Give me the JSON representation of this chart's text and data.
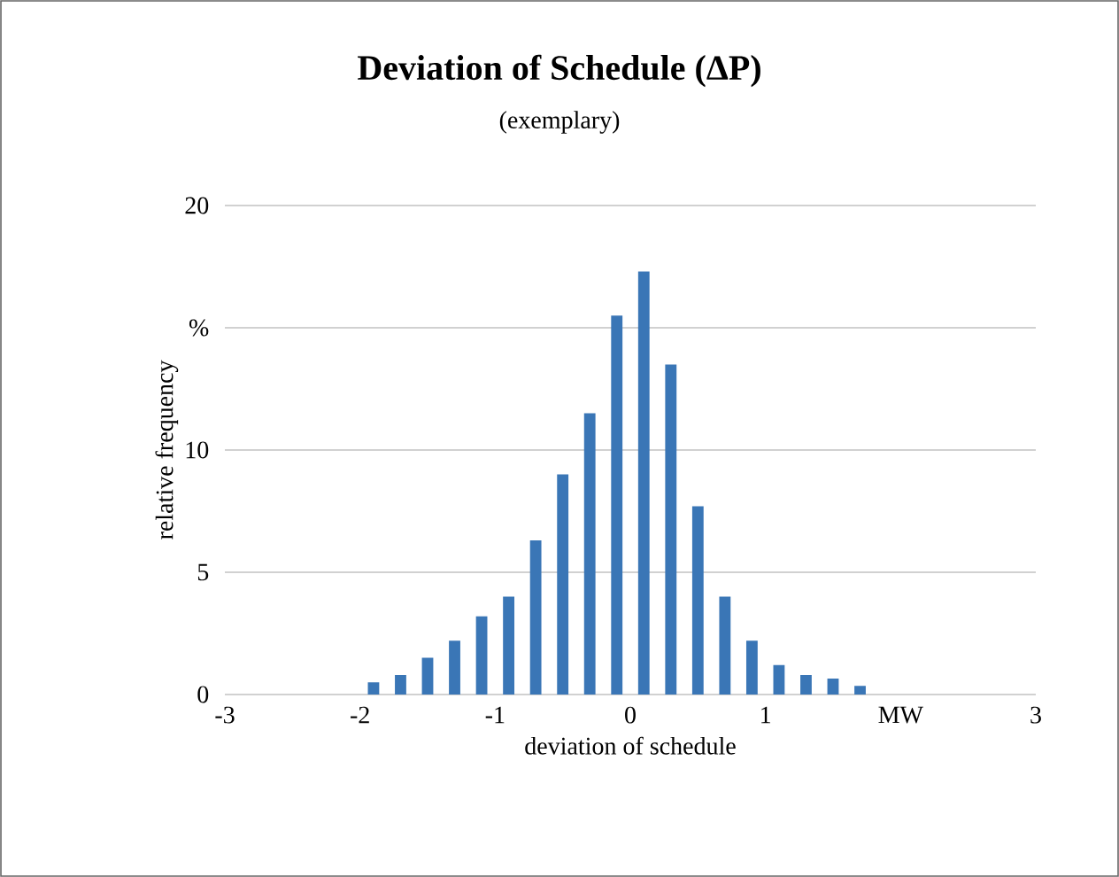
{
  "chart_data": {
    "type": "histogram",
    "title": "Deviation of Schedule (ΔP)",
    "subtitle": "(exemplary)",
    "xlabel": "deviation of schedule",
    "ylabel": "relative frequency",
    "bins": [
      -2.0,
      -1.8,
      -1.6,
      -1.4,
      -1.2,
      -1.0,
      -0.8,
      -0.6,
      -0.4,
      -0.2,
      0.0,
      0.2,
      0.4,
      0.6,
      0.8,
      1.0,
      1.2,
      1.4,
      1.6,
      1.8
    ],
    "values": [
      0.5,
      0.8,
      1.5,
      2.2,
      3.2,
      4.0,
      6.3,
      9.0,
      11.5,
      15.5,
      17.3,
      13.5,
      7.7,
      4.0,
      2.2,
      1.2,
      0.8,
      0.65,
      0.35
    ],
    "color": "#3a76b6",
    "xlim": [
      -3,
      3
    ],
    "ylim": [
      0,
      20
    ],
    "xticks": [
      -3,
      -2,
      -1,
      0,
      1,
      {
        "value": 2,
        "label": "MW"
      },
      3
    ],
    "yticks": [
      0,
      5,
      10,
      {
        "value": 15,
        "label": "%"
      },
      20
    ],
    "grid": "y"
  }
}
